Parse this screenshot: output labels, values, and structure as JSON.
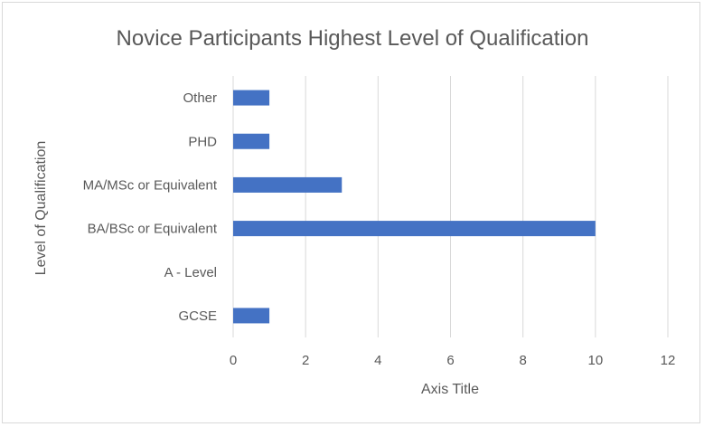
{
  "chart_data": {
    "type": "bar",
    "orientation": "horizontal",
    "title": "Novice Participants Highest Level of Qualification",
    "xlabel": "Axis Title",
    "ylabel": "Level of Qualification",
    "categories": [
      "GCSE",
      "A - Level",
      "BA/BSc or Equivalent",
      "MA/MSc or Equivalent",
      "PHD",
      "Other"
    ],
    "values": [
      1,
      0,
      10,
      3,
      1,
      1
    ],
    "xlim": [
      0,
      12
    ],
    "xticks": [
      0,
      2,
      4,
      6,
      8,
      10,
      12
    ],
    "grid": true,
    "bar_color": "#4472c4"
  }
}
